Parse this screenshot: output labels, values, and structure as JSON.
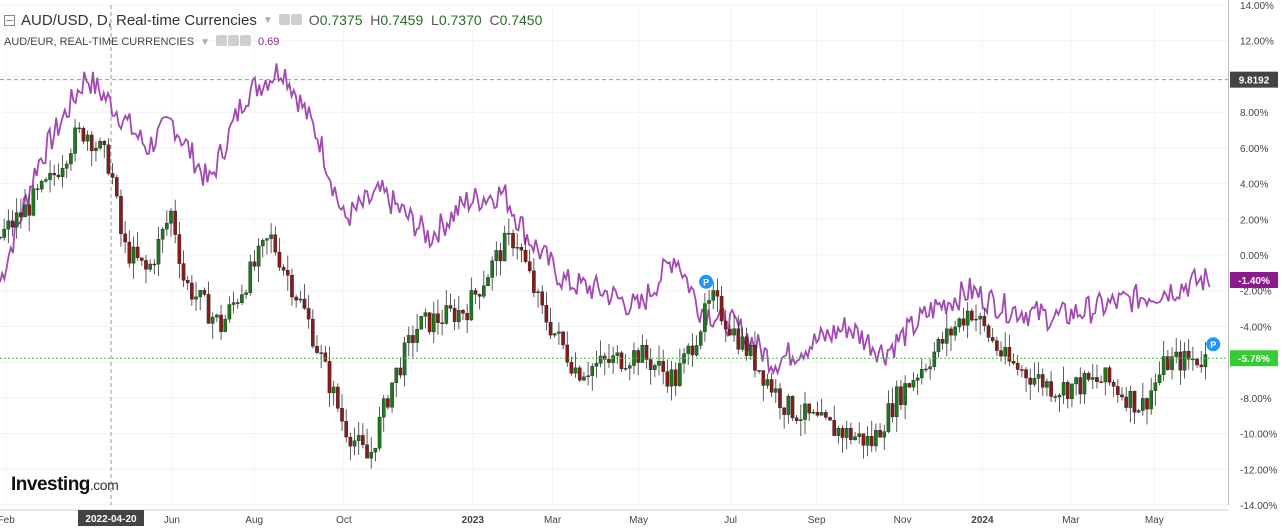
{
  "header": {
    "title": "AUD/USD, D, Real-time Currencies",
    "ohlc": {
      "open_label": "O",
      "open": "0.7375",
      "high_label": "H",
      "high": "0.7459",
      "low_label": "L",
      "low": "0.7370",
      "close_label": "C",
      "close": "0.7450"
    },
    "compare_symbol": "AUD/EUR, REAL-TIME CURRENCIES",
    "compare_value": "0.69"
  },
  "brand": {
    "name": "Investing",
    "domain": ".com"
  },
  "chart_data": {
    "type": "line",
    "y_axis": {
      "unit": "%",
      "ticks": [
        "14.00%",
        "12.00%",
        "10.00%",
        "8.00%",
        "6.00%",
        "4.00%",
        "2.00%",
        "0.00%",
        "-2.00%",
        "-4.00%",
        "-6.00%",
        "-8.00%",
        "-10.00%",
        "-12.00%",
        "-14.00%"
      ],
      "range": [
        -14,
        14
      ]
    },
    "x_ticks": [
      "Feb",
      "Jun",
      "Aug",
      "Oct",
      "2023",
      "Mar",
      "May",
      "Jul",
      "Sep",
      "Nov",
      "2024",
      "Mar",
      "May"
    ],
    "crosshair": {
      "x_label": "2022-04-20",
      "y_label": "9.8192"
    },
    "markers": {
      "AUD/USD": "-5.78%",
      "AUD/EUR": "-1.40%"
    },
    "series": [
      {
        "name": "AUD/USD",
        "style": "candlestick",
        "color_up": "#1b7a1b",
        "color_down": "#8b1a1a",
        "approx_points": [
          [
            0,
            1.0
          ],
          [
            0.04,
            4.0
          ],
          [
            0.06,
            6.5
          ],
          [
            0.07,
            7.0
          ],
          [
            0.09,
            5.0
          ],
          [
            0.1,
            0.5
          ],
          [
            0.12,
            -1.0
          ],
          [
            0.14,
            2.5
          ],
          [
            0.15,
            -1.5
          ],
          [
            0.18,
            -4.0
          ],
          [
            0.22,
            1.0
          ],
          [
            0.25,
            -3.5
          ],
          [
            0.28,
            -9.5
          ],
          [
            0.3,
            -11.5
          ],
          [
            0.32,
            -7.0
          ],
          [
            0.34,
            -4.0
          ],
          [
            0.38,
            -3.0
          ],
          [
            0.41,
            0.5
          ],
          [
            0.42,
            1.0
          ],
          [
            0.44,
            -3.0
          ],
          [
            0.47,
            -6.5
          ],
          [
            0.52,
            -5.5
          ],
          [
            0.55,
            -7.0
          ],
          [
            0.58,
            -2.5
          ],
          [
            0.61,
            -5.5
          ],
          [
            0.64,
            -8.5
          ],
          [
            0.67,
            -9.5
          ],
          [
            0.71,
            -10.5
          ],
          [
            0.73,
            -8.0
          ],
          [
            0.76,
            -5.5
          ],
          [
            0.79,
            -3.0
          ],
          [
            0.82,
            -6.0
          ],
          [
            0.86,
            -7.5
          ],
          [
            0.9,
            -7.0
          ],
          [
            0.93,
            -8.5
          ],
          [
            0.95,
            -6.0
          ],
          [
            0.98,
            -5.8
          ]
        ]
      },
      {
        "name": "AUD/EUR",
        "style": "line",
        "color": "#a24ab3",
        "approx_points": [
          [
            0,
            -1.5
          ],
          [
            0.03,
            5.0
          ],
          [
            0.07,
            10.0
          ],
          [
            0.09,
            8.5
          ],
          [
            0.12,
            6.0
          ],
          [
            0.14,
            7.5
          ],
          [
            0.17,
            4.0
          ],
          [
            0.2,
            9.0
          ],
          [
            0.23,
            10.5
          ],
          [
            0.26,
            6.5
          ],
          [
            0.28,
            2.0
          ],
          [
            0.31,
            3.5
          ],
          [
            0.35,
            1.0
          ],
          [
            0.38,
            3.0
          ],
          [
            0.41,
            3.5
          ],
          [
            0.43,
            1.0
          ],
          [
            0.46,
            -1.5
          ],
          [
            0.49,
            -2.0
          ],
          [
            0.52,
            -3.0
          ],
          [
            0.55,
            0.0
          ],
          [
            0.57,
            -3.0
          ],
          [
            0.6,
            -4.0
          ],
          [
            0.63,
            -6.0
          ],
          [
            0.66,
            -5.0
          ],
          [
            0.69,
            -4.0
          ],
          [
            0.72,
            -5.5
          ],
          [
            0.76,
            -3.0
          ],
          [
            0.79,
            -2.0
          ],
          [
            0.82,
            -3.0
          ],
          [
            0.86,
            -3.5
          ],
          [
            0.89,
            -3.0
          ],
          [
            0.92,
            -2.5
          ],
          [
            0.95,
            -2.0
          ],
          [
            0.98,
            -1.4
          ]
        ]
      }
    ],
    "grid": true,
    "legend": "top-left"
  },
  "colors": {
    "compare_line": "#a24ab3",
    "price_marker": "#33cc33",
    "compare_marker": "#8b1a8b",
    "up": "#1b7a1b",
    "down": "#8b1a1a"
  }
}
